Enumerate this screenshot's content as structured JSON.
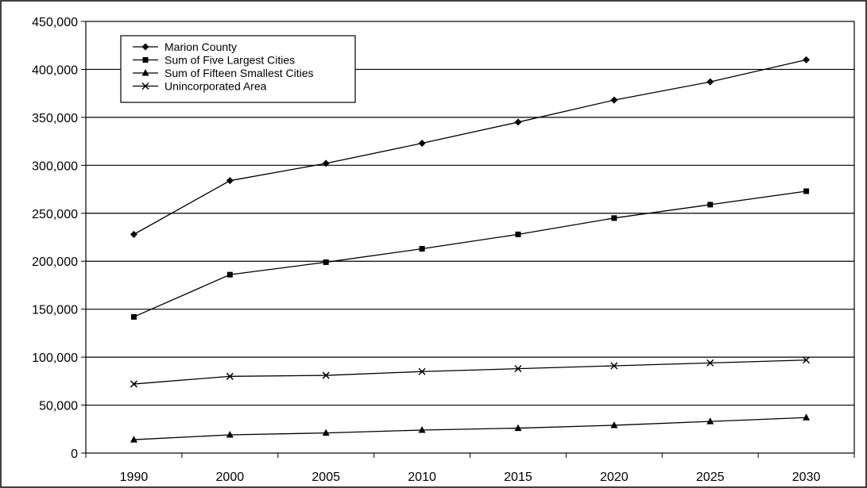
{
  "chart_data": {
    "type": "line",
    "title": "",
    "xlabel": "",
    "ylabel": "",
    "categories": [
      "1990",
      "2000",
      "2005",
      "2010",
      "2015",
      "2020",
      "2025",
      "2030"
    ],
    "ylim": [
      0,
      450000
    ],
    "y_ticks": [
      0,
      50000,
      100000,
      150000,
      200000,
      250000,
      300000,
      350000,
      400000,
      450000
    ],
    "y_tick_labels": [
      "0",
      "50,000",
      "100,000",
      "150,000",
      "200,000",
      "250,000",
      "300,000",
      "350,000",
      "400,000",
      "450,000"
    ],
    "grid": "horizontal",
    "legend_position": "top-left",
    "series": [
      {
        "name": "Marion County",
        "marker": "diamond",
        "values": [
          228000,
          284000,
          302000,
          323000,
          345000,
          368000,
          387000,
          410000
        ]
      },
      {
        "name": "Sum of Five Largest Cities",
        "marker": "square",
        "values": [
          142000,
          186000,
          199000,
          213000,
          228000,
          245000,
          259000,
          273000
        ]
      },
      {
        "name": "Sum of Fifteen Smallest Cities",
        "marker": "triangle",
        "values": [
          14000,
          19000,
          21000,
          24000,
          26000,
          29000,
          33000,
          37000
        ]
      },
      {
        "name": "Unincorporated Area",
        "marker": "x",
        "values": [
          72000,
          80000,
          81000,
          85000,
          88000,
          91000,
          94000,
          97000
        ]
      }
    ]
  }
}
